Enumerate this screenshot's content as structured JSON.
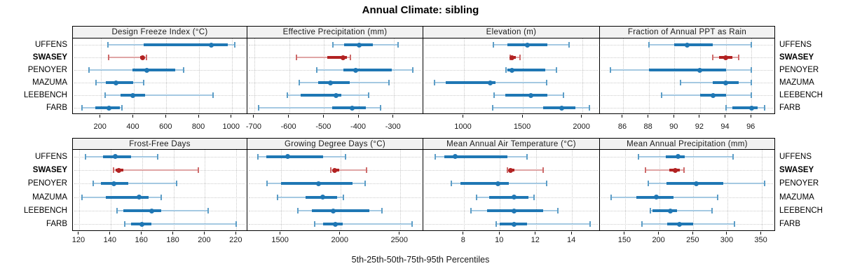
{
  "title": "Annual Climate: sibling",
  "footer_label": "5th-25th-50th-75th-95th Percentiles",
  "percentile_labels": [
    "5th",
    "25th",
    "50th",
    "75th",
    "95th"
  ],
  "sites": [
    "UFFENS",
    "SWASEY",
    "PENOYER",
    "MAZUMA",
    "LEEBENCH",
    "FARB"
  ],
  "highlight_site": "SWASEY",
  "colors": {
    "normal_dark": "#1f77b4",
    "normal_light": "#a5c9e2",
    "normal_cap": "#5d9ec7",
    "highlight_dark": "#b22222",
    "highlight_light": "#e0a6a6",
    "highlight_cap": "#ce6b6b",
    "strip_bg": "#f2f2f2",
    "grid": "#cccccc",
    "border": "#000000"
  },
  "chart_data": {
    "type": "dotplot-percentiles",
    "note": "horizontal 5-25-50-75-95 percentile bars per site; dot = median",
    "panels": [
      {
        "title": "Design Freeze Index (°C)",
        "ticks": [
          200,
          400,
          600,
          800,
          1000
        ],
        "xlim": [
          30,
          1095
        ],
        "series": {
          "UFFENS": [
            245,
            460,
            875,
            975,
            1020
          ],
          "SWASEY": [
            250,
            440,
            455,
            465,
            480
          ],
          "PENOYER": [
            130,
            395,
            480,
            655,
            705
          ],
          "MAZUMA": [
            170,
            230,
            295,
            400,
            460
          ],
          "LEEBENCH": [
            225,
            320,
            395,
            470,
            885
          ],
          "FARB": [
            85,
            165,
            250,
            315,
            330
          ]
        }
      },
      {
        "title": "Effective Precipitation (mm)",
        "ticks": [
          -700,
          -600,
          -500,
          -400,
          -300
        ],
        "xlim": [
          -720,
          -215
        ],
        "series": {
          "UFFENS": [
            -475,
            -443,
            -400,
            -360,
            -287
          ],
          "SWASEY": [
            -580,
            -490,
            -445,
            -435,
            -425
          ],
          "PENOYER": [
            -520,
            -445,
            -410,
            -305,
            -245
          ],
          "MAZUMA": [
            -572,
            -517,
            -482,
            -426,
            -314
          ],
          "LEEBENCH": [
            -605,
            -567,
            -465,
            -450,
            -371
          ],
          "FARB": [
            -688,
            -477,
            -420,
            -379,
            -337
          ]
        }
      },
      {
        "title": "Elevation (m)",
        "ticks": [
          1000,
          1500,
          2000
        ],
        "xlim": [
          660,
          2150
        ],
        "series": {
          "UFFENS": [
            1250,
            1370,
            1540,
            1705,
            1890
          ],
          "SWASEY": [
            1395,
            1400,
            1410,
            1440,
            1475
          ],
          "PENOYER": [
            1355,
            1370,
            1405,
            1690,
            1785
          ],
          "MAZUMA": [
            755,
            850,
            1225,
            1270,
            1700
          ],
          "LEEBENCH": [
            1260,
            1350,
            1565,
            1705,
            1840
          ],
          "FARB": [
            1245,
            1670,
            1825,
            1945,
            2060
          ]
        }
      },
      {
        "title": "Fraction of Annual PPT as Rain",
        "ticks": [
          86,
          88,
          90,
          92,
          94,
          96
        ],
        "xlim": [
          84.2,
          97.9
        ],
        "series": {
          "UFFENS": [
            88,
            90,
            91,
            93,
            96
          ],
          "SWASEY": [
            93,
            93.5,
            94,
            94.5,
            95
          ],
          "PENOYER": [
            85,
            88,
            92,
            94,
            96
          ],
          "MAZUMA": [
            90.5,
            93,
            94,
            95,
            96
          ],
          "LEEBENCH": [
            89,
            92,
            93,
            94,
            96
          ],
          "FARB": [
            94,
            94.5,
            96,
            96.5,
            97
          ]
        }
      },
      {
        "title": "Frost-Free Days",
        "ticks": [
          120,
          140,
          160,
          180,
          200,
          220
        ],
        "xlim": [
          116,
          227
        ],
        "series": {
          "UFFENS": [
            124,
            135,
            143,
            153,
            170
          ],
          "SWASEY": [
            142,
            143,
            145,
            148,
            196
          ],
          "PENOYER": [
            129,
            134,
            142,
            151,
            182
          ],
          "MAZUMA": [
            122,
            137,
            158,
            164,
            172
          ],
          "LEEBENCH": [
            144,
            148,
            166,
            172,
            202
          ],
          "FARB": [
            149,
            153,
            160,
            166,
            220
          ]
        }
      },
      {
        "title": "Growing Degree Days (°C)",
        "ticks": [
          1500,
          2000,
          2500
        ],
        "xlim": [
          1220,
          2695
        ],
        "series": {
          "UFFENS": [
            1310,
            1380,
            1560,
            1855,
            2045
          ],
          "SWASEY": [
            1920,
            1935,
            1950,
            1990,
            2220
          ],
          "PENOYER": [
            1385,
            1505,
            1815,
            2100,
            2210
          ],
          "MAZUMA": [
            1470,
            1710,
            1850,
            1970,
            2025
          ],
          "LEEBENCH": [
            1645,
            1760,
            1940,
            2245,
            2350
          ],
          "FARB": [
            1785,
            1855,
            1955,
            2020,
            2600
          ]
        }
      },
      {
        "title": "Mean Annual Air Temperature (°C)",
        "ticks": [
          8,
          10,
          12,
          14
        ],
        "xlim": [
          5.75,
          15.55
        ],
        "series": {
          "UFFENS": [
            6.4,
            6.9,
            7.5,
            10.4,
            11.5
          ],
          "SWASEY": [
            10.4,
            10.5,
            10.6,
            10.8,
            12.4
          ],
          "PENOYER": [
            7.3,
            7.8,
            9.9,
            10.5,
            12.6
          ],
          "MAZUMA": [
            8.7,
            9.4,
            10.8,
            11.6,
            11.9
          ],
          "LEEBENCH": [
            8.4,
            9.3,
            10.8,
            12.4,
            13.2
          ],
          "FARB": [
            9.8,
            10.0,
            10.8,
            11.5,
            15.0
          ]
        }
      },
      {
        "title": "Mean Annual Precipitation (mm)",
        "ticks": [
          150,
          200,
          250,
          300,
          350
        ],
        "xlim": [
          113,
          371
        ],
        "series": {
          "UFFENS": [
            170,
            210,
            228,
            237,
            308
          ],
          "SWASEY": [
            180,
            215,
            223,
            230,
            236
          ],
          "PENOYER": [
            184,
            211,
            254,
            294,
            355
          ],
          "MAZUMA": [
            129,
            166,
            196,
            221,
            286
          ],
          "LEEBENCH": [
            187,
            190,
            216,
            226,
            277
          ],
          "FARB": [
            175,
            212,
            230,
            250,
            310
          ]
        }
      }
    ]
  }
}
